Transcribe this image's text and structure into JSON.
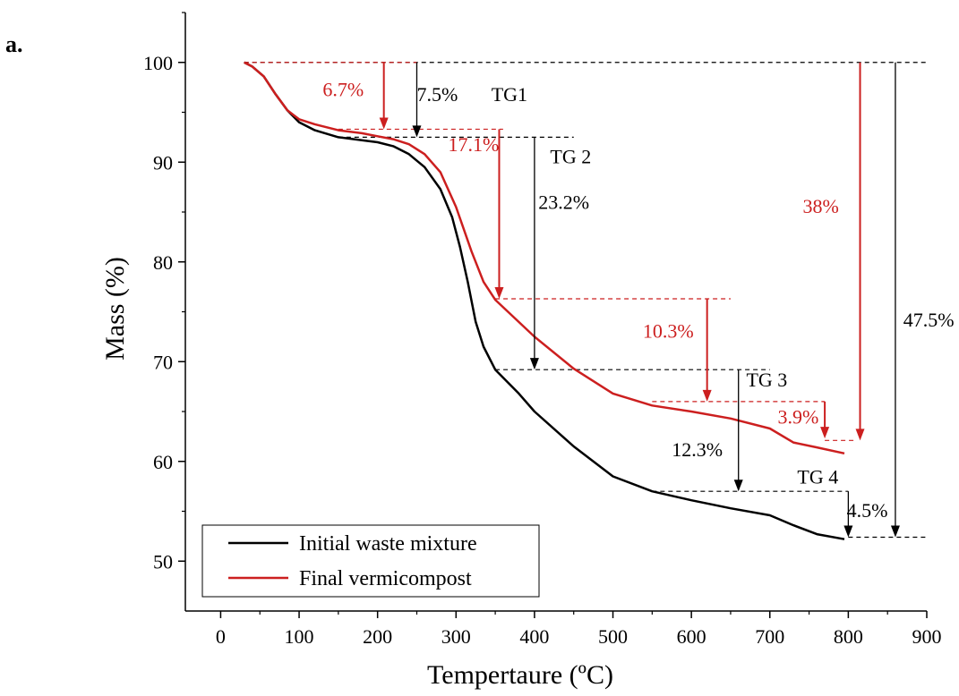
{
  "panel_label": "a.",
  "chart_data": {
    "type": "line",
    "xlabel": "Tempertaure (ºC)",
    "ylabel": "Mass (%)",
    "xlim": [
      -45,
      900
    ],
    "ylim": [
      45,
      105
    ],
    "xticks": [
      0,
      100,
      200,
      300,
      400,
      500,
      600,
      700,
      800,
      900
    ],
    "yticks": [
      50,
      60,
      70,
      80,
      90,
      100
    ],
    "grid": false,
    "legend_position": "bottom-left",
    "series": [
      {
        "name": "Initial waste mixture",
        "color": "#000000",
        "points": [
          [
            30,
            100
          ],
          [
            40,
            99.6
          ],
          [
            55,
            98.6
          ],
          [
            70,
            96.8
          ],
          [
            85,
            95.2
          ],
          [
            100,
            94
          ],
          [
            120,
            93.2
          ],
          [
            150,
            92.5
          ],
          [
            180,
            92.2
          ],
          [
            200,
            92
          ],
          [
            220,
            91.6
          ],
          [
            240,
            90.8
          ],
          [
            260,
            89.5
          ],
          [
            280,
            87.3
          ],
          [
            295,
            84.5
          ],
          [
            305,
            81.5
          ],
          [
            315,
            78
          ],
          [
            325,
            74
          ],
          [
            335,
            71.5
          ],
          [
            350,
            69.2
          ],
          [
            380,
            66.8
          ],
          [
            400,
            65
          ],
          [
            450,
            61.5
          ],
          [
            500,
            58.5
          ],
          [
            550,
            57
          ],
          [
            600,
            56.1
          ],
          [
            650,
            55.3
          ],
          [
            700,
            54.6
          ],
          [
            730,
            53.6
          ],
          [
            760,
            52.7
          ],
          [
            795,
            52.2
          ]
        ]
      },
      {
        "name": "Final vermicompost",
        "color": "#cc1f1f",
        "points": [
          [
            30,
            100
          ],
          [
            40,
            99.6
          ],
          [
            55,
            98.6
          ],
          [
            70,
            96.8
          ],
          [
            85,
            95.2
          ],
          [
            100,
            94.3
          ],
          [
            120,
            93.8
          ],
          [
            150,
            93.2
          ],
          [
            180,
            92.9
          ],
          [
            200,
            92.6
          ],
          [
            220,
            92.3
          ],
          [
            240,
            91.8
          ],
          [
            260,
            90.8
          ],
          [
            280,
            89
          ],
          [
            300,
            85.5
          ],
          [
            320,
            81
          ],
          [
            335,
            78
          ],
          [
            350,
            76.2
          ],
          [
            400,
            72.5
          ],
          [
            450,
            69.3
          ],
          [
            500,
            66.8
          ],
          [
            550,
            65.6
          ],
          [
            600,
            65
          ],
          [
            650,
            64.3
          ],
          [
            700,
            63.3
          ],
          [
            730,
            61.9
          ],
          [
            760,
            61.4
          ],
          [
            795,
            60.8
          ]
        ]
      }
    ],
    "annotations": {
      "black": [
        {
          "text": "7.5%",
          "x": 250,
          "y": 96.1
        },
        {
          "text": "TG1",
          "x": 345,
          "y": 96.1
        },
        {
          "text": "TG 2",
          "x": 420,
          "y": 89.9
        },
        {
          "text": "23.2%",
          "x": 405,
          "y": 85.3
        },
        {
          "text": "47.5%",
          "x": 870,
          "y": 73.5
        },
        {
          "text": "TG 3",
          "x": 670,
          "y": 67.5
        },
        {
          "text": "12.3%",
          "x": 575,
          "y": 60.5
        },
        {
          "text": "TG 4",
          "x": 735,
          "y": 57.8
        },
        {
          "text": "4.5%",
          "x": 798,
          "y": 54.4
        }
      ],
      "red": [
        {
          "text": "6.7%",
          "x": 130,
          "y": 96.6
        },
        {
          "text": "17.1%",
          "x": 290,
          "y": 91.1
        },
        {
          "text": "38%",
          "x": 742,
          "y": 84.9
        },
        {
          "text": "10.3%",
          "x": 538,
          "y": 72.4
        },
        {
          "text": "3.9%",
          "x": 710,
          "y": 63.8
        }
      ]
    },
    "reference_lines": {
      "black": [
        {
          "x1": 30,
          "x2": 900,
          "y": 100
        },
        {
          "x1": 150,
          "x2": 450,
          "y": 92.5
        },
        {
          "x1": 350,
          "x2": 700,
          "y": 69.2
        },
        {
          "x1": 550,
          "x2": 800,
          "y": 57
        },
        {
          "x1": 800,
          "x2": 900,
          "y": 52.4
        }
      ],
      "red": [
        {
          "x1": 30,
          "x2": 250,
          "y": 100
        },
        {
          "x1": 150,
          "x2": 360,
          "y": 93.3
        },
        {
          "x1": 350,
          "x2": 650,
          "y": 76.3
        },
        {
          "x1": 550,
          "x2": 770,
          "y": 66
        },
        {
          "x1": 770,
          "x2": 810,
          "y": 62.1
        }
      ]
    },
    "drop_arrows": {
      "black": [
        {
          "x": 250,
          "y1": 100,
          "y2": 92.5
        },
        {
          "x": 400,
          "y1": 92.5,
          "y2": 69.2
        },
        {
          "x": 660,
          "y1": 69.2,
          "y2": 57
        },
        {
          "x": 800,
          "y1": 57,
          "y2": 52.4
        },
        {
          "x": 860,
          "y1": 100,
          "y2": 52.4
        }
      ],
      "red": [
        {
          "x": 208,
          "y1": 100,
          "y2": 93.3
        },
        {
          "x": 355,
          "y1": 93.3,
          "y2": 76.3
        },
        {
          "x": 620,
          "y1": 76.3,
          "y2": 66
        },
        {
          "x": 770,
          "y1": 66,
          "y2": 62.3
        },
        {
          "x": 815,
          "y1": 100,
          "y2": 62.1
        }
      ]
    },
    "colors": {
      "black": "#000000",
      "red": "#cc1f1f"
    }
  }
}
